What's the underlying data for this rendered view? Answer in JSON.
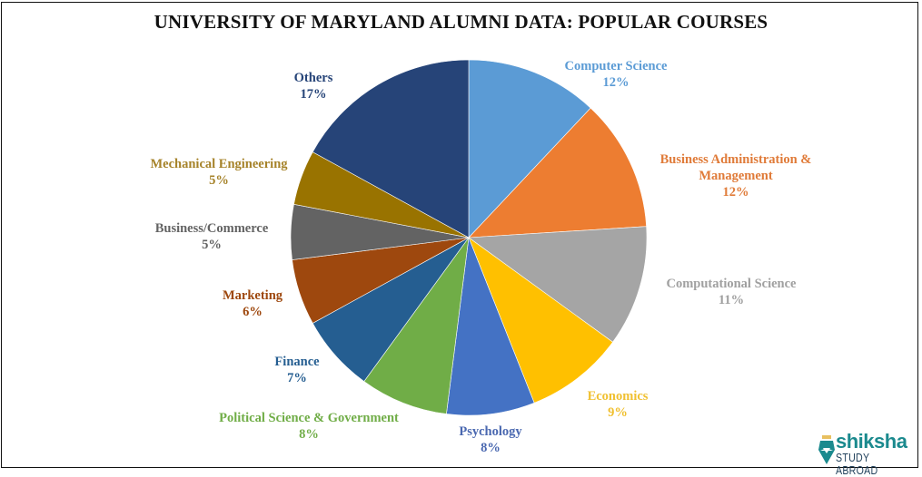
{
  "chart_data": {
    "type": "pie",
    "title": "UNIVERSITY OF MARYLAND ALUMNI DATA: POPULAR COURSES",
    "categories": [
      "Computer Science",
      "Business Administration & Management",
      "Computational Science",
      "Economics",
      "Psychology",
      "Political Science & Government",
      "Finance",
      "Marketing",
      "Business/Commerce",
      "Mechanical Engineering",
      "Others"
    ],
    "values": [
      12,
      12,
      11,
      9,
      8,
      8,
      7,
      6,
      5,
      5,
      17
    ],
    "unit": "%",
    "colors": [
      "#5b9bd5",
      "#ed7d31",
      "#a5a5a5",
      "#ffc000",
      "#4472c4",
      "#70ad47",
      "#255e91",
      "#9e480e",
      "#636363",
      "#997300",
      "#264478"
    ],
    "start_angle": "12 o'clock, clockwise",
    "legend": "none (data labels outside slices)"
  },
  "labels": [
    {
      "name": "Computer Science",
      "pct": "12%",
      "color": "#5b9bd5"
    },
    {
      "name": "Business Administration  &",
      "name2": "Management",
      "pct": "12%",
      "color": "#ed7d31"
    },
    {
      "name": "Computational  Science",
      "pct": "11%",
      "color": "#a5a5a5"
    },
    {
      "name": "Economics",
      "pct": "9%",
      "color": "#ffc000"
    },
    {
      "name": "Psychology",
      "pct": "8%",
      "color": "#4472c4"
    },
    {
      "name": "Political  Science & Government",
      "pct": "8%",
      "color": "#70ad47"
    },
    {
      "name": "Finance",
      "pct": "7%",
      "color": "#255e91"
    },
    {
      "name": "Marketing",
      "pct": "6%",
      "color": "#9e480e"
    },
    {
      "name": "Business/Commerce",
      "pct": "5%",
      "color": "#636363"
    },
    {
      "name": "Mechanical Engineering",
      "pct": "5%",
      "color": "#997300"
    },
    {
      "name": "Others",
      "pct": "17%",
      "color": "#264478"
    }
  ],
  "logo": {
    "word": "shiksha",
    "sub": "STUDY ABROAD"
  }
}
